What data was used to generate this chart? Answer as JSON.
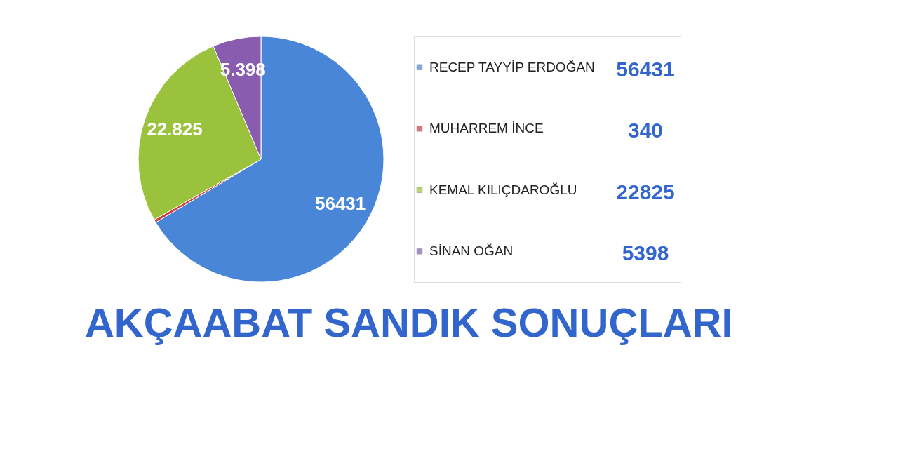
{
  "chart_data": {
    "type": "pie",
    "title": "AKÇAABAT SANDIK SONUÇLARI",
    "categories": [
      "RECEP TAYYİP ERDOĞAN",
      "MUHARREM İNCE",
      "KEMAL KILIÇDAROĞLU",
      "SİNAN OĞAN"
    ],
    "values": [
      56431,
      340,
      22825,
      5398
    ],
    "colors": [
      "#4a86d8",
      "#d23c3c",
      "#9bc23c",
      "#8a5cb0"
    ],
    "value_labels": [
      "56431",
      null,
      "22.825",
      "5.398"
    ],
    "annotations": [
      "56431",
      "340",
      "22825",
      "5398"
    ],
    "legend": "right"
  }
}
